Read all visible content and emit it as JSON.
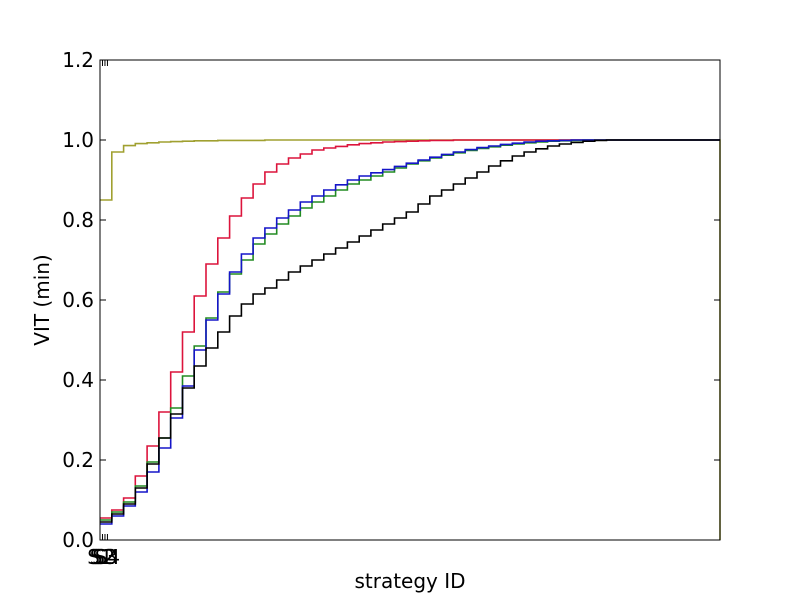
{
  "chart_data": {
    "type": "line",
    "title": "",
    "xlabel": "strategy ID",
    "ylabel": "VIT (min)",
    "xlim": [
      0,
      100
    ],
    "ylim": [
      0,
      1.2
    ],
    "xtick_labels": [
      "S1",
      "S2",
      "S3",
      "S4"
    ],
    "yticks": [
      0.0,
      0.2,
      0.4,
      0.6,
      0.8,
      1.0,
      1.2
    ],
    "ytick_labels": [
      "0.0",
      "0.2",
      "0.4",
      "0.6",
      "0.8",
      "1.0",
      "1.2"
    ],
    "grid": false,
    "legend": "none",
    "step_width": 1.9,
    "series": [
      {
        "color": "#a0a030",
        "values": [
          0.85,
          0.97,
          0.986,
          0.991,
          0.993,
          0.995,
          0.996,
          0.997,
          0.998,
          0.998,
          0.999,
          0.999,
          0.999,
          0.999,
          1.0,
          1.0,
          1.0,
          1.0,
          1.0,
          1.0,
          1.0,
          1.0,
          1.0,
          1.0,
          1.0,
          1.0,
          1.0,
          1.0,
          1.0,
          1.0,
          1.0,
          1.0,
          1.0,
          1.0,
          1.0,
          1.0,
          1.0,
          1.0,
          1.0,
          1.0,
          1.0,
          1.0,
          1.0,
          1.0,
          1.0,
          1.0,
          1.0,
          1.0,
          1.0,
          1.0,
          1.0,
          1.0
        ],
        "drop_at_end": true
      },
      {
        "color": "#dc143c",
        "values": [
          0.055,
          0.075,
          0.105,
          0.16,
          0.235,
          0.32,
          0.42,
          0.52,
          0.61,
          0.69,
          0.755,
          0.81,
          0.855,
          0.89,
          0.92,
          0.94,
          0.955,
          0.965,
          0.975,
          0.98,
          0.984,
          0.988,
          0.991,
          0.993,
          0.995,
          0.996,
          0.997,
          0.998,
          0.999,
          0.999,
          1.0,
          1.0,
          1.0,
          1.0,
          1.0,
          1.0,
          1.0,
          1.0,
          1.0,
          1.0,
          1.0,
          1.0,
          1.0,
          1.0,
          1.0,
          1.0,
          1.0,
          1.0,
          1.0,
          1.0,
          1.0,
          1.0
        ]
      },
      {
        "color": "#228b22",
        "values": [
          0.05,
          0.07,
          0.095,
          0.135,
          0.195,
          0.255,
          0.33,
          0.41,
          0.485,
          0.555,
          0.62,
          0.665,
          0.7,
          0.74,
          0.765,
          0.79,
          0.81,
          0.83,
          0.845,
          0.86,
          0.875,
          0.89,
          0.9,
          0.91,
          0.92,
          0.93,
          0.94,
          0.948,
          0.955,
          0.962,
          0.968,
          0.974,
          0.979,
          0.983,
          0.987,
          0.99,
          0.993,
          0.995,
          0.997,
          0.998,
          0.999,
          1.0,
          1.0,
          1.0,
          1.0,
          1.0,
          1.0,
          1.0,
          1.0,
          1.0,
          1.0,
          1.0
        ]
      },
      {
        "color": "#1515c8",
        "values": [
          0.04,
          0.06,
          0.085,
          0.12,
          0.17,
          0.23,
          0.305,
          0.385,
          0.475,
          0.55,
          0.615,
          0.67,
          0.715,
          0.755,
          0.78,
          0.805,
          0.825,
          0.845,
          0.86,
          0.875,
          0.888,
          0.9,
          0.91,
          0.918,
          0.926,
          0.934,
          0.942,
          0.95,
          0.957,
          0.964,
          0.97,
          0.976,
          0.981,
          0.985,
          0.989,
          0.992,
          0.995,
          0.997,
          0.998,
          0.999,
          1.0,
          1.0,
          1.0,
          1.0,
          1.0,
          1.0,
          1.0,
          1.0,
          1.0,
          1.0,
          1.0,
          1.0
        ]
      },
      {
        "color": "#000000",
        "values": [
          0.045,
          0.065,
          0.09,
          0.13,
          0.19,
          0.255,
          0.315,
          0.38,
          0.435,
          0.48,
          0.52,
          0.56,
          0.59,
          0.615,
          0.63,
          0.65,
          0.67,
          0.685,
          0.7,
          0.715,
          0.73,
          0.745,
          0.76,
          0.775,
          0.79,
          0.805,
          0.82,
          0.84,
          0.86,
          0.875,
          0.89,
          0.905,
          0.92,
          0.935,
          0.948,
          0.96,
          0.97,
          0.978,
          0.985,
          0.99,
          0.994,
          0.997,
          0.999,
          1.0,
          1.0,
          1.0,
          1.0,
          1.0,
          1.0,
          1.0,
          1.0,
          1.0
        ]
      }
    ]
  }
}
